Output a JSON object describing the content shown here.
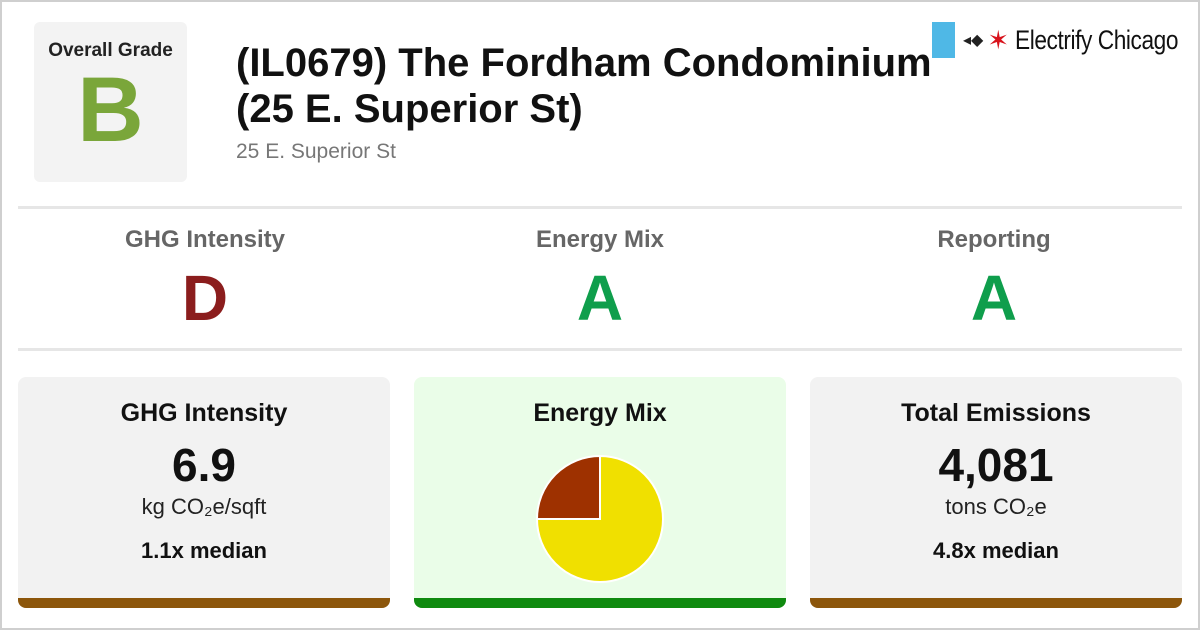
{
  "header": {
    "overall_grade_label": "Overall Grade",
    "overall_grade": "B",
    "overall_grade_color": "#7aa63a",
    "title": "(IL0679) The Fordham Condominium (25 E. Superior St)",
    "address": "25 E. Superior St"
  },
  "brand": {
    "name": "Electrify Chicago",
    "flag_color": "#4fb8e6",
    "star_color": "#d8131c"
  },
  "grades": [
    {
      "label": "GHG Intensity",
      "letter": "D",
      "color": "#8b1d1d"
    },
    {
      "label": "Energy Mix",
      "letter": "A",
      "color": "#0f9e4c"
    },
    {
      "label": "Reporting",
      "letter": "A",
      "color": "#0f9e4c"
    }
  ],
  "cards": {
    "ghg": {
      "title": "GHG Intensity",
      "value": "6.9",
      "unit": "kg CO₂e/sqft",
      "median": "1.1x median",
      "bar_color": "#8c560b"
    },
    "energy_mix": {
      "title": "Energy Mix",
      "background": "#eafde8",
      "bar_color": "#0f8a0f"
    },
    "emissions": {
      "title": "Total Emissions",
      "value": "4,081",
      "unit": "tons CO₂e",
      "median": "4.8x median",
      "bar_color": "#8c560b"
    }
  },
  "chart_data": {
    "type": "pie",
    "slices": [
      {
        "value": 75,
        "color": "#f0e000"
      },
      {
        "value": 25,
        "color": "#9e3100"
      }
    ]
  }
}
